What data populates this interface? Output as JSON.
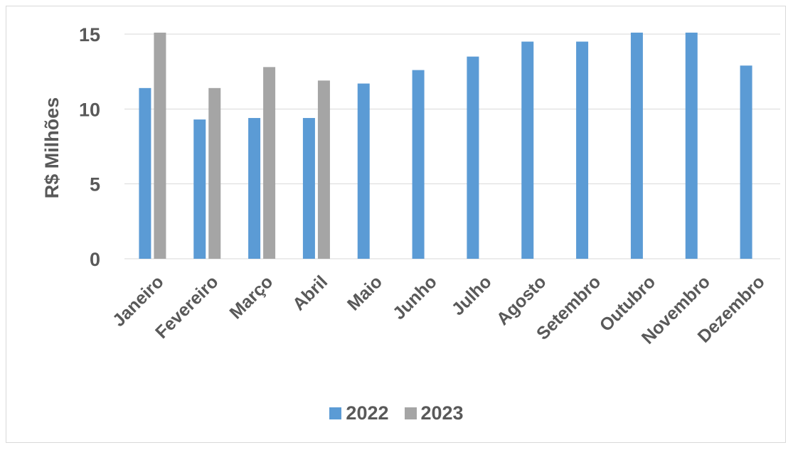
{
  "chart_data": {
    "type": "bar",
    "ylabel": "R$ Milhões",
    "ylim": [
      0,
      15
    ],
    "yticks": [
      0,
      5,
      10,
      15
    ],
    "grid": true,
    "legend_position": "bottom",
    "categories": [
      "Janeiro",
      "Fevereiro",
      "Março",
      "Abril",
      "Maio",
      "Junho",
      "Julho",
      "Agosto",
      "Setembro",
      "Outubro",
      "Novembro",
      "Dezembro"
    ],
    "series": [
      {
        "name": "2022",
        "color": "#5b9bd5",
        "values": [
          11.4,
          9.3,
          9.4,
          9.4,
          11.7,
          12.6,
          13.5,
          14.5,
          14.5,
          15.1,
          15.1,
          12.9
        ]
      },
      {
        "name": "2023",
        "color": "#a5a5a5",
        "values": [
          15.1,
          11.4,
          12.8,
          11.9,
          null,
          null,
          null,
          null,
          null,
          null,
          null,
          null
        ]
      }
    ]
  }
}
